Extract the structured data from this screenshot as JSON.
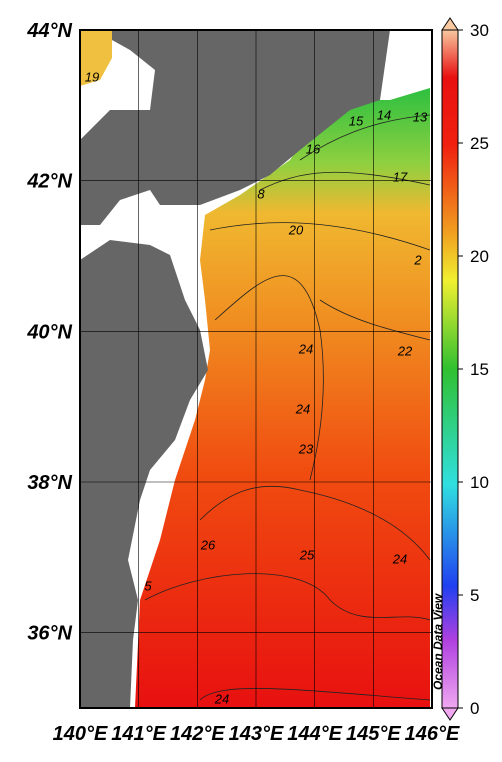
{
  "map": {
    "xlim": [
      140,
      146
    ],
    "ylim": [
      35,
      44
    ],
    "xticks": [
      {
        "value": 140,
        "label": "140°E"
      },
      {
        "value": 141,
        "label": "141°E"
      },
      {
        "value": 142,
        "label": "142°E"
      },
      {
        "value": 143,
        "label": "143°E"
      },
      {
        "value": 144,
        "label": "144°E"
      },
      {
        "value": 145,
        "label": "145°E"
      },
      {
        "value": 146,
        "label": "146°E"
      }
    ],
    "yticks": [
      {
        "value": 36,
        "label": "36°N"
      },
      {
        "value": 38,
        "label": "38°N"
      },
      {
        "value": 40,
        "label": "40°N"
      },
      {
        "value": 42,
        "label": "42°N"
      },
      {
        "value": 44,
        "label": "44°N"
      }
    ]
  },
  "colorbar": {
    "lim": [
      0,
      30
    ],
    "ticks": [
      0,
      5,
      10,
      15,
      20,
      25,
      30
    ]
  },
  "contour_labels": [
    "19",
    "15",
    "14",
    "13",
    "16",
    "17",
    "8",
    "20",
    "2",
    "22",
    "24",
    "24",
    "23",
    "26",
    "25",
    "24",
    "5",
    "24"
  ],
  "credit": "Ocean Data View"
}
